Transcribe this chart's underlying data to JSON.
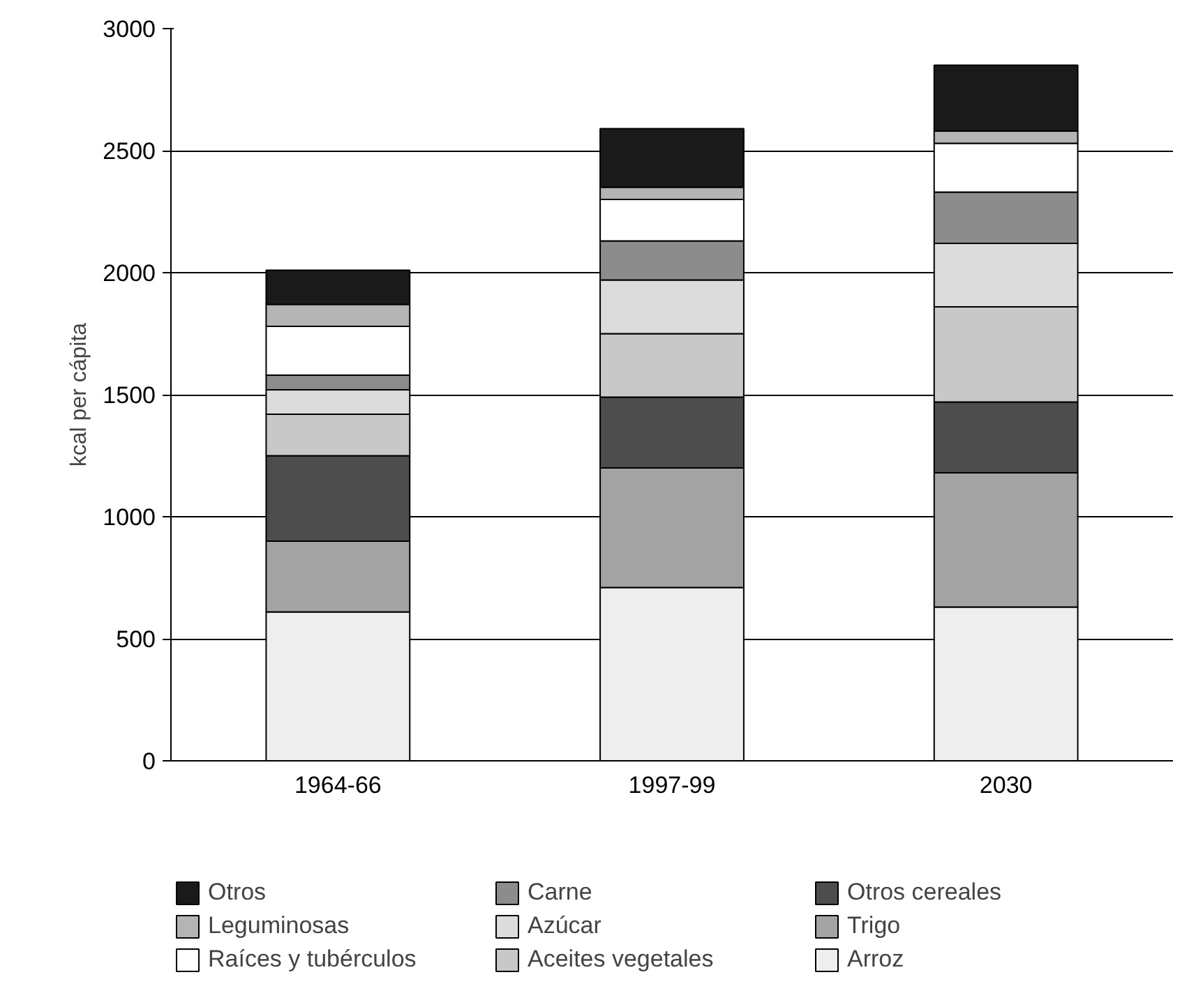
{
  "chart_data": {
    "type": "bar",
    "stacked": true,
    "ylabel": "kcal per cápita",
    "categories": [
      "1964-66",
      "1997-99",
      "2030"
    ],
    "ylim": [
      0,
      3000
    ],
    "yticks": [
      0,
      500,
      1000,
      1500,
      2000,
      2500,
      3000
    ],
    "grid": "y",
    "legend": "bottom",
    "series": [
      {
        "name": "Arroz",
        "color": "#eeeeee",
        "values": [
          610,
          710,
          630
        ]
      },
      {
        "name": "Trigo",
        "color": "#a3a3a3",
        "values": [
          290,
          490,
          550
        ]
      },
      {
        "name": "Otros cereales",
        "color": "#4d4d4d",
        "values": [
          350,
          290,
          290
        ]
      },
      {
        "name": "Aceites vegetales",
        "color": "#c8c8c8",
        "values": [
          170,
          260,
          390
        ]
      },
      {
        "name": "Azúcar",
        "color": "#dcdcdc",
        "values": [
          100,
          220,
          260
        ]
      },
      {
        "name": "Carne",
        "color": "#8c8c8c",
        "values": [
          60,
          160,
          210
        ]
      },
      {
        "name": "Raíces y tubérculos",
        "color": "#ffffff",
        "values": [
          200,
          170,
          200
        ]
      },
      {
        "name": "Leguminosas",
        "color": "#b4b4b4",
        "values": [
          90,
          50,
          50
        ]
      },
      {
        "name": "Otros",
        "color": "#1a1a1a",
        "values": [
          140,
          240,
          270
        ]
      }
    ]
  }
}
